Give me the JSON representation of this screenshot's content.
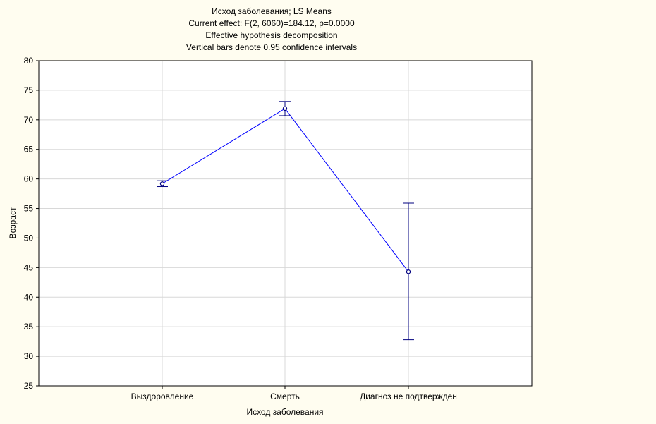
{
  "chart_data": {
    "type": "line",
    "title": [
      "Исход заболевания; LS Means",
      "Current effect: F(2, 6060)=184.12, p=0.0000",
      "Effective hypothesis decomposition",
      "Vertical bars denote 0.95 confidence intervals"
    ],
    "xlabel": "Исход заболевания",
    "ylabel": "Возраст",
    "categories": [
      "Выздоровление",
      "Смерть",
      "Диагноз не подтвержден"
    ],
    "series": [
      {
        "values": [
          59.2,
          71.9,
          44.3
        ],
        "ci_lower": [
          58.7,
          70.7,
          32.8
        ],
        "ci_upper": [
          59.7,
          73.1,
          55.9
        ]
      }
    ],
    "ylim": [
      25,
      80
    ],
    "yticks": [
      25,
      30,
      35,
      40,
      45,
      50,
      55,
      60,
      65,
      70,
      75,
      80
    ],
    "grid": true,
    "legend": "none",
    "colors": {
      "background": "#fffdf0",
      "plot_background": "#ffffff",
      "line": "#0000ff",
      "error_bar": "#00007f",
      "grid": "#d8d8d8"
    }
  }
}
